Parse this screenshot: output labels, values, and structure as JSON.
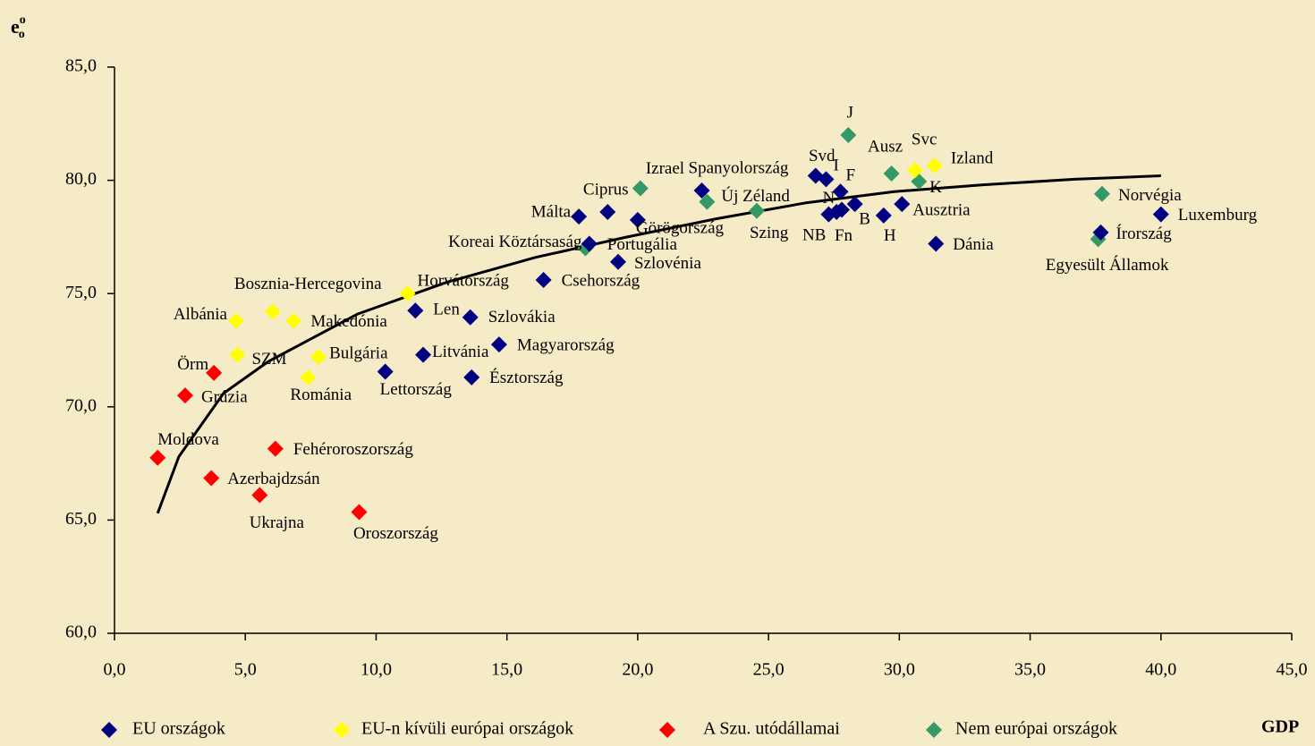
{
  "chart_data": {
    "type": "scatter",
    "ylabel": {
      "base": "e",
      "sup": "o",
      "sub": "o"
    },
    "xlabel": "GDP",
    "xlim": [
      0,
      45
    ],
    "ylim": [
      60,
      85
    ],
    "xticks": [
      {
        "value": 0,
        "label": "0,0"
      },
      {
        "value": 5,
        "label": "5,0"
      },
      {
        "value": 10,
        "label": "10,0"
      },
      {
        "value": 15,
        "label": "15,0"
      },
      {
        "value": 20,
        "label": "20,0"
      },
      {
        "value": 25,
        "label": "25,0"
      },
      {
        "value": 30,
        "label": "30,0"
      },
      {
        "value": 35,
        "label": "35,0"
      },
      {
        "value": 40,
        "label": "40,0"
      },
      {
        "value": 45,
        "label": "45,0"
      }
    ],
    "yticks": [
      {
        "value": 60,
        "label": "60,0"
      },
      {
        "value": 65,
        "label": "65,0"
      },
      {
        "value": 70,
        "label": "70,0"
      },
      {
        "value": 75,
        "label": "75,0"
      },
      {
        "value": 80,
        "label": "80,0"
      },
      {
        "value": 85,
        "label": "85,0"
      }
    ],
    "series": [
      {
        "name": "EU országok",
        "color": "#000080",
        "labels": [
          "Málta",
          "Ciprus",
          "Görögország",
          "Portugália",
          "Szlovénia",
          "Csehország",
          "Spanyolország",
          "Svd",
          "I",
          "F",
          "N",
          "NB",
          "Fn",
          "B",
          "H",
          "Ausztria",
          "Dánia",
          "Írország",
          "Luxemburg",
          "Lettország",
          "Litvánia",
          "Len",
          "Szlovákia",
          "Magyarország",
          "Észtország"
        ],
        "x": [
          17.75,
          18.85,
          20.0,
          18.15,
          19.25,
          16.4,
          22.45,
          26.8,
          27.2,
          27.75,
          27.3,
          27.6,
          27.8,
          28.3,
          29.4,
          30.1,
          31.4,
          37.7,
          40.0,
          10.35,
          11.8,
          11.5,
          13.6,
          14.7,
          13.65
        ],
        "y": [
          78.4,
          78.6,
          78.25,
          77.2,
          76.4,
          75.6,
          79.55,
          80.2,
          80.05,
          79.5,
          78.5,
          78.6,
          78.7,
          78.95,
          78.45,
          78.95,
          77.2,
          77.7,
          78.5,
          71.55,
          72.3,
          74.25,
          73.95,
          72.75,
          71.3
        ]
      },
      {
        "name": "EU-n kívüli európai országok",
        "color": "#ffff00",
        "labels": [
          "Albánia",
          "SZM",
          "Bosznia-Hercegovina",
          "Makedónia",
          "Bulgária",
          "Románia",
          "Horvátország",
          "Svc",
          "Izland"
        ],
        "x": [
          4.65,
          4.7,
          6.05,
          6.85,
          7.8,
          7.4,
          11.2,
          30.6,
          31.35
        ],
        "y": [
          73.8,
          72.3,
          74.2,
          73.8,
          72.2,
          71.3,
          75.0,
          80.45,
          80.65
        ]
      },
      {
        "name": "A Szu. utódállamai",
        "color": "#ff0000",
        "labels": [
          "Örm",
          "Grúzia",
          "Moldova",
          "Azerbajdzsán",
          "Ukrajna",
          "Fehéroroszország",
          "Oroszország"
        ],
        "x": [
          3.8,
          2.7,
          1.65,
          3.7,
          5.55,
          6.15,
          9.35
        ],
        "y": [
          71.5,
          70.5,
          67.75,
          66.85,
          66.1,
          68.15,
          65.35
        ]
      },
      {
        "name": "Nem európai országok",
        "color": "#339966",
        "labels": [
          "Izrael",
          "Új Zéland",
          "Szing",
          "J",
          "Ausz",
          "K",
          "Norvégia",
          "Egyesült Államok",
          "Koreai Köztársaság"
        ],
        "x": [
          20.1,
          22.65,
          24.55,
          28.05,
          29.7,
          30.75,
          37.75,
          37.6,
          18.0
        ],
        "y": [
          79.65,
          79.05,
          78.65,
          82.0,
          80.3,
          79.95,
          79.4,
          77.4,
          77.0
        ]
      }
    ],
    "trendline": {
      "color": "#000000",
      "x": [
        1.65,
        2.46,
        4.17,
        5.88,
        9.3,
        12.7,
        16.1,
        19.6,
        23.0,
        26.4,
        29.8,
        33.2,
        36.7,
        40.0
      ],
      "y": [
        65.3,
        67.8,
        70.6,
        72.0,
        74.1,
        75.5,
        76.6,
        77.5,
        78.3,
        79.0,
        79.5,
        79.8,
        80.05,
        80.2
      ]
    }
  }
}
